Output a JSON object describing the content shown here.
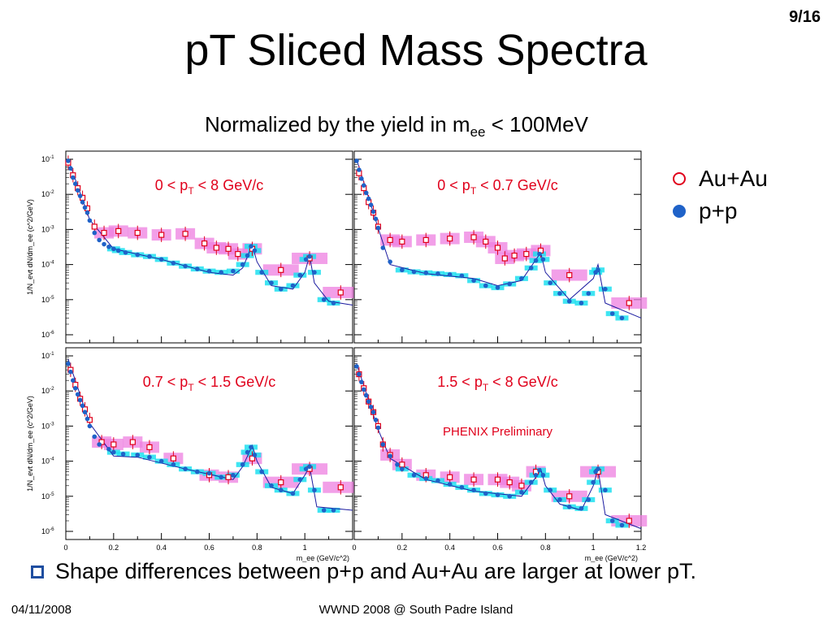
{
  "slide": {
    "number": "9/16",
    "title": "pT Sliced Mass Spectra",
    "subtitle_main": "Normalized by the yield in m",
    "subtitle_sub": "ee",
    "subtitle_tail": " < 100MeV",
    "bullet": "Shape differences between p+p and Au+Au are larger at lower pT.",
    "footer_date": "04/11/2008",
    "footer_event": "WWND 2008 @ South Padre Island"
  },
  "legend": [
    {
      "label": "Au+Au",
      "marker": "open-circle",
      "color": "#e0001b"
    },
    {
      "label": "p+p",
      "marker": "filled-circle",
      "color": "#1f62c8"
    }
  ],
  "chart_data": {
    "type": "scatter",
    "layout": "2x2 panels",
    "ylabel": "1/N_evt dN/dm_ee (c^2/GeV)",
    "xlabel": "m_ee (GeV/c^2)",
    "xlim": [
      0,
      1.2
    ],
    "ylim": [
      1e-06,
      0.1
    ],
    "yscale": "log",
    "x_ticks": [
      "0",
      "0.2",
      "0.4",
      "0.6",
      "0.8",
      "1",
      "1.2"
    ],
    "y_ticks": [
      "10^-1",
      "10^-2",
      "10^-3",
      "10^-4",
      "10^-5",
      "10^-6"
    ],
    "colors": {
      "auau": "#e0001b",
      "auau_sys": "#ee7fe0",
      "pp": "#1f62c8",
      "pp_sys": "#1fe0f0",
      "label": "#e0001b"
    },
    "annotation": "PHENIX Preliminary",
    "panels": [
      {
        "label": [
          "0 < p",
          "T",
          " < 8 GeV/c"
        ],
        "pp": [
          [
            0.01,
            0.09
          ],
          [
            0.02,
            0.055
          ],
          [
            0.03,
            0.03
          ],
          [
            0.04,
            0.02
          ],
          [
            0.05,
            0.013
          ],
          [
            0.06,
            0.009
          ],
          [
            0.07,
            0.006
          ],
          [
            0.08,
            0.0042
          ],
          [
            0.09,
            0.003
          ],
          [
            0.1,
            0.0018
          ],
          [
            0.12,
            0.0008
          ],
          [
            0.14,
            0.0005
          ],
          [
            0.16,
            0.00038
          ],
          [
            0.18,
            0.00032
          ],
          [
            0.2,
            0.00028
          ],
          [
            0.22,
            0.00025
          ],
          [
            0.25,
            0.00022
          ],
          [
            0.3,
            0.00019
          ],
          [
            0.35,
            0.00017
          ],
          [
            0.4,
            0.00014
          ],
          [
            0.45,
            0.00011
          ],
          [
            0.5,
            9e-05
          ],
          [
            0.55,
            7.5e-05
          ],
          [
            0.6,
            6.5e-05
          ],
          [
            0.65,
            6e-05
          ],
          [
            0.7,
            6.5e-05
          ],
          [
            0.74,
            0.0001
          ],
          [
            0.76,
            0.00018
          ],
          [
            0.775,
            0.00033
          ],
          [
            0.79,
            0.00025
          ],
          [
            0.82,
            6e-05
          ],
          [
            0.86,
            3e-05
          ],
          [
            0.9,
            2e-05
          ],
          [
            0.95,
            2.5e-05
          ],
          [
            0.98,
            5e-05
          ],
          [
            1.005,
            0.00014
          ],
          [
            1.02,
            0.00017
          ],
          [
            1.04,
            6e-05
          ],
          [
            1.08,
            1e-05
          ],
          [
            1.12,
            8e-06
          ]
        ],
        "auau": [
          [
            0.01,
            0.08
          ],
          [
            0.03,
            0.035
          ],
          [
            0.05,
            0.015
          ],
          [
            0.07,
            0.008
          ],
          [
            0.09,
            0.004
          ],
          [
            0.12,
            0.0012
          ],
          [
            0.16,
            0.0008
          ],
          [
            0.22,
            0.0009
          ],
          [
            0.3,
            0.0008
          ],
          [
            0.4,
            0.0007
          ],
          [
            0.5,
            0.00075
          ],
          [
            0.58,
            0.0004
          ],
          [
            0.63,
            0.0003
          ],
          [
            0.68,
            0.00028
          ],
          [
            0.72,
            0.0002
          ],
          [
            0.78,
            0.00028
          ],
          [
            0.9,
            7e-05
          ],
          [
            1.02,
            0.00015
          ],
          [
            1.15,
            1.6e-05
          ]
        ],
        "pp_line": [
          [
            0.01,
            0.1
          ],
          [
            0.1,
            0.0019
          ],
          [
            0.2,
            0.00028
          ],
          [
            0.4,
            0.00014
          ],
          [
            0.6,
            6e-05
          ],
          [
            0.7,
            5e-05
          ],
          [
            0.74,
            8e-05
          ],
          [
            0.78,
            0.00036
          ],
          [
            0.8,
            0.00012
          ],
          [
            0.86,
            2.5e-05
          ],
          [
            0.95,
            2e-05
          ],
          [
            1.0,
            6e-05
          ],
          [
            1.02,
            0.00018
          ],
          [
            1.04,
            3e-05
          ],
          [
            1.1,
            9e-06
          ],
          [
            1.2,
            7e-06
          ]
        ]
      },
      {
        "label": [
          "0 < p",
          "T",
          " < 0.7 GeV/c"
        ],
        "pp": [
          [
            0.01,
            0.09
          ],
          [
            0.02,
            0.05
          ],
          [
            0.03,
            0.028
          ],
          [
            0.04,
            0.018
          ],
          [
            0.05,
            0.011
          ],
          [
            0.06,
            0.0075
          ],
          [
            0.07,
            0.005
          ],
          [
            0.08,
            0.0032
          ],
          [
            0.09,
            0.002
          ],
          [
            0.1,
            0.0011
          ],
          [
            0.12,
            0.0003
          ],
          [
            0.15,
            0.00012
          ],
          [
            0.2,
            7e-05
          ],
          [
            0.25,
            6.2e-05
          ],
          [
            0.3,
            5.8e-05
          ],
          [
            0.35,
            5.5e-05
          ],
          [
            0.4,
            5.2e-05
          ],
          [
            0.45,
            4.8e-05
          ],
          [
            0.5,
            3.5e-05
          ],
          [
            0.55,
            2.5e-05
          ],
          [
            0.6,
            2.2e-05
          ],
          [
            0.65,
            2.8e-05
          ],
          [
            0.7,
            4e-05
          ],
          [
            0.74,
            8e-05
          ],
          [
            0.76,
            0.00013
          ],
          [
            0.775,
            0.0002
          ],
          [
            0.79,
            0.00014
          ],
          [
            0.82,
            3e-05
          ],
          [
            0.86,
            1.5e-05
          ],
          [
            0.9,
            9e-06
          ],
          [
            0.95,
            8e-06
          ],
          [
            0.98,
            1.5e-05
          ],
          [
            1.01,
            6e-05
          ],
          [
            1.02,
            7e-05
          ],
          [
            1.05,
            2e-05
          ],
          [
            1.08,
            4e-06
          ],
          [
            1.12,
            3e-06
          ]
        ],
        "auau": [
          [
            0.02,
            0.04
          ],
          [
            0.04,
            0.015
          ],
          [
            0.06,
            0.006
          ],
          [
            0.08,
            0.003
          ],
          [
            0.1,
            0.0012
          ],
          [
            0.15,
            0.0005
          ],
          [
            0.2,
            0.00045
          ],
          [
            0.3,
            0.0005
          ],
          [
            0.4,
            0.00055
          ],
          [
            0.5,
            0.0006
          ],
          [
            0.55,
            0.00045
          ],
          [
            0.6,
            0.0003
          ],
          [
            0.63,
            0.00015
          ],
          [
            0.67,
            0.00018
          ],
          [
            0.72,
            0.0002
          ],
          [
            0.78,
            0.00025
          ],
          [
            0.9,
            5e-05
          ],
          [
            1.15,
            8e-06
          ]
        ],
        "pp_line": [
          [
            0.01,
            0.1
          ],
          [
            0.1,
            0.0011
          ],
          [
            0.15,
            0.0001
          ],
          [
            0.3,
            5.5e-05
          ],
          [
            0.5,
            4e-05
          ],
          [
            0.6,
            2.5e-05
          ],
          [
            0.7,
            3.5e-05
          ],
          [
            0.78,
            0.00022
          ],
          [
            0.8,
            6e-05
          ],
          [
            0.9,
            1e-05
          ],
          [
            1.0,
            4e-05
          ],
          [
            1.02,
            0.0001
          ],
          [
            1.05,
            8e-06
          ],
          [
            1.2,
            3e-06
          ]
        ]
      },
      {
        "label": [
          "0.7 < p",
          "T",
          " < 1.5 GeV/c"
        ],
        "pp": [
          [
            0.01,
            0.06
          ],
          [
            0.02,
            0.035
          ],
          [
            0.03,
            0.02
          ],
          [
            0.04,
            0.012
          ],
          [
            0.05,
            0.008
          ],
          [
            0.06,
            0.0055
          ],
          [
            0.07,
            0.0038
          ],
          [
            0.08,
            0.0025
          ],
          [
            0.09,
            0.0016
          ],
          [
            0.1,
            0.001
          ],
          [
            0.12,
            0.0005
          ],
          [
            0.14,
            0.0003
          ],
          [
            0.18,
            0.00022
          ],
          [
            0.2,
            0.00018
          ],
          [
            0.24,
            0.00016
          ],
          [
            0.3,
            0.00015
          ],
          [
            0.35,
            0.00013
          ],
          [
            0.4,
            0.0001
          ],
          [
            0.45,
            8e-05
          ],
          [
            0.5,
            6e-05
          ],
          [
            0.55,
            5e-05
          ],
          [
            0.6,
            4.5e-05
          ],
          [
            0.65,
            3.5e-05
          ],
          [
            0.7,
            4e-05
          ],
          [
            0.74,
            8e-05
          ],
          [
            0.76,
            0.00018
          ],
          [
            0.775,
            0.00025
          ],
          [
            0.79,
            0.00015
          ],
          [
            0.82,
            5e-05
          ],
          [
            0.86,
            2e-05
          ],
          [
            0.9,
            1.5e-05
          ],
          [
            0.95,
            1.2e-05
          ],
          [
            0.98,
            3e-05
          ],
          [
            1.005,
            6e-05
          ],
          [
            1.02,
            7e-05
          ],
          [
            1.04,
            1.5e-05
          ],
          [
            1.08,
            4e-06
          ],
          [
            1.12,
            4e-06
          ]
        ],
        "auau": [
          [
            0.02,
            0.04
          ],
          [
            0.04,
            0.015
          ],
          [
            0.06,
            0.006
          ],
          [
            0.08,
            0.003
          ],
          [
            0.1,
            0.0015
          ],
          [
            0.15,
            0.00035
          ],
          [
            0.2,
            0.0003
          ],
          [
            0.28,
            0.00035
          ],
          [
            0.35,
            0.00025
          ],
          [
            0.45,
            0.00012
          ],
          [
            0.6,
            4e-05
          ],
          [
            0.68,
            3.5e-05
          ],
          [
            0.78,
            0.00012
          ],
          [
            0.9,
            2.5e-05
          ],
          [
            1.02,
            6e-05
          ],
          [
            1.15,
            1.8e-05
          ]
        ],
        "pp_line": [
          [
            0.01,
            0.08
          ],
          [
            0.1,
            0.0012
          ],
          [
            0.2,
            0.00014
          ],
          [
            0.3,
            0.00013
          ],
          [
            0.5,
            6e-05
          ],
          [
            0.7,
            3e-05
          ],
          [
            0.74,
            7e-05
          ],
          [
            0.78,
            0.00028
          ],
          [
            0.8,
            0.0001
          ],
          [
            0.86,
            1.8e-05
          ],
          [
            0.95,
            1.2e-05
          ],
          [
            1.0,
            4e-05
          ],
          [
            1.02,
            7e-05
          ],
          [
            1.05,
            5e-06
          ],
          [
            1.2,
            4e-06
          ]
        ]
      },
      {
        "label": [
          "1.5 < p",
          "T",
          " < 8 GeV/c"
        ],
        "pp": [
          [
            0.01,
            0.05
          ],
          [
            0.02,
            0.03
          ],
          [
            0.03,
            0.018
          ],
          [
            0.04,
            0.011
          ],
          [
            0.05,
            0.0075
          ],
          [
            0.06,
            0.005
          ],
          [
            0.07,
            0.0035
          ],
          [
            0.08,
            0.0025
          ],
          [
            0.09,
            0.0015
          ],
          [
            0.1,
            0.0009
          ],
          [
            0.12,
            0.0003
          ],
          [
            0.15,
            0.00014
          ],
          [
            0.18,
            8e-05
          ],
          [
            0.2,
            6e-05
          ],
          [
            0.25,
            4e-05
          ],
          [
            0.3,
            3.2e-05
          ],
          [
            0.35,
            2.8e-05
          ],
          [
            0.4,
            2.2e-05
          ],
          [
            0.45,
            1.8e-05
          ],
          [
            0.5,
            1.5e-05
          ],
          [
            0.55,
            1.2e-05
          ],
          [
            0.6,
            1.1e-05
          ],
          [
            0.65,
            1e-05
          ],
          [
            0.7,
            1.3e-05
          ],
          [
            0.74,
            2.5e-05
          ],
          [
            0.76,
            4e-05
          ],
          [
            0.775,
            5.5e-05
          ],
          [
            0.79,
            4e-05
          ],
          [
            0.82,
            1.5e-05
          ],
          [
            0.86,
            8e-06
          ],
          [
            0.9,
            5e-06
          ],
          [
            0.95,
            4.5e-06
          ],
          [
            0.98,
            8e-06
          ],
          [
            1.0,
            2.5e-05
          ],
          [
            1.01,
            5e-05
          ],
          [
            1.02,
            6e-05
          ],
          [
            1.05,
            1.5e-05
          ],
          [
            1.08,
            2e-06
          ],
          [
            1.12,
            1.5e-06
          ]
        ],
        "auau": [
          [
            0.02,
            0.03
          ],
          [
            0.04,
            0.012
          ],
          [
            0.06,
            0.005
          ],
          [
            0.08,
            0.0025
          ],
          [
            0.1,
            0.001
          ],
          [
            0.12,
            0.0003
          ],
          [
            0.15,
            0.00015
          ],
          [
            0.2,
            8e-05
          ],
          [
            0.3,
            4e-05
          ],
          [
            0.4,
            3.5e-05
          ],
          [
            0.5,
            3e-05
          ],
          [
            0.6,
            3e-05
          ],
          [
            0.65,
            2.5e-05
          ],
          [
            0.7,
            2e-05
          ],
          [
            0.76,
            5e-05
          ],
          [
            0.9,
            1e-05
          ],
          [
            1.02,
            5e-05
          ],
          [
            1.15,
            2e-06
          ]
        ],
        "pp_line": [
          [
            0.01,
            0.06
          ],
          [
            0.1,
            0.0008
          ],
          [
            0.15,
            0.00012
          ],
          [
            0.3,
            3e-05
          ],
          [
            0.5,
            1.4e-05
          ],
          [
            0.7,
            1e-05
          ],
          [
            0.76,
            3.5e-05
          ],
          [
            0.78,
            6e-05
          ],
          [
            0.8,
            2e-05
          ],
          [
            0.86,
            6e-06
          ],
          [
            0.95,
            4e-06
          ],
          [
            1.0,
            2e-05
          ],
          [
            1.02,
            6e-05
          ],
          [
            1.05,
            3e-06
          ],
          [
            1.2,
            1.2e-06
          ]
        ]
      }
    ]
  }
}
